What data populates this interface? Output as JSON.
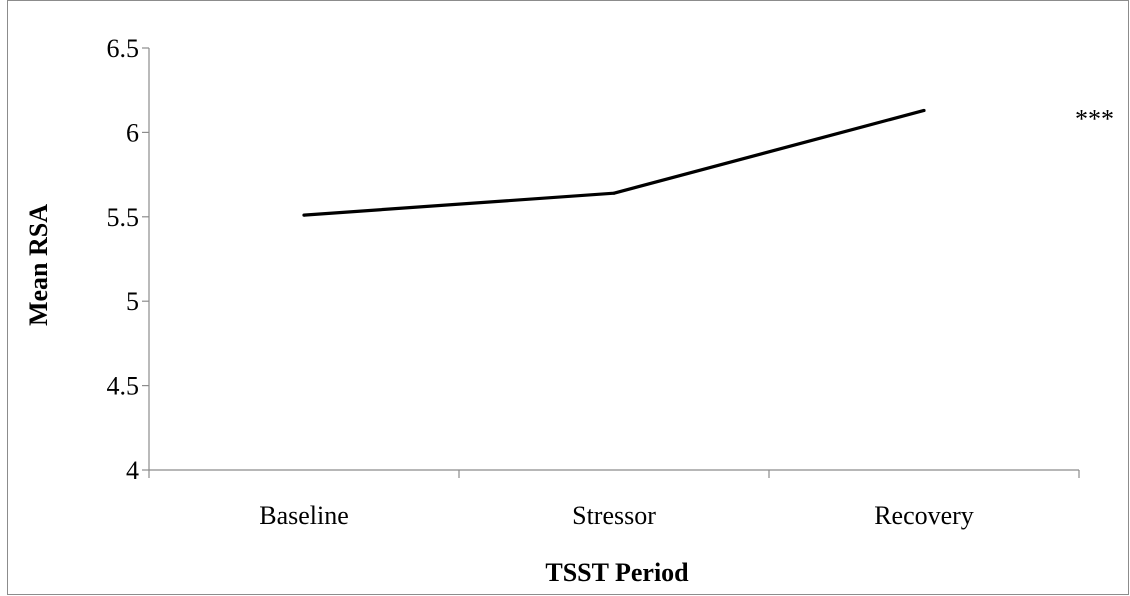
{
  "chart_data": {
    "type": "line",
    "categories": [
      "Baseline",
      "Stressor",
      "Recovery"
    ],
    "series": [
      {
        "values": [
          5.51,
          5.64,
          6.13
        ]
      }
    ],
    "title": "",
    "xlabel": "TSST Period",
    "ylabel": "Mean RSA",
    "ylim": [
      4,
      6.5
    ],
    "yticks": [
      "4",
      "4.5",
      "5",
      "5.5",
      "6",
      "6.5"
    ],
    "grid": false,
    "legend": "none",
    "line_color": "#000000",
    "annotations": [
      {
        "text": "***",
        "x": 2.55,
        "y": 6.03
      }
    ]
  }
}
